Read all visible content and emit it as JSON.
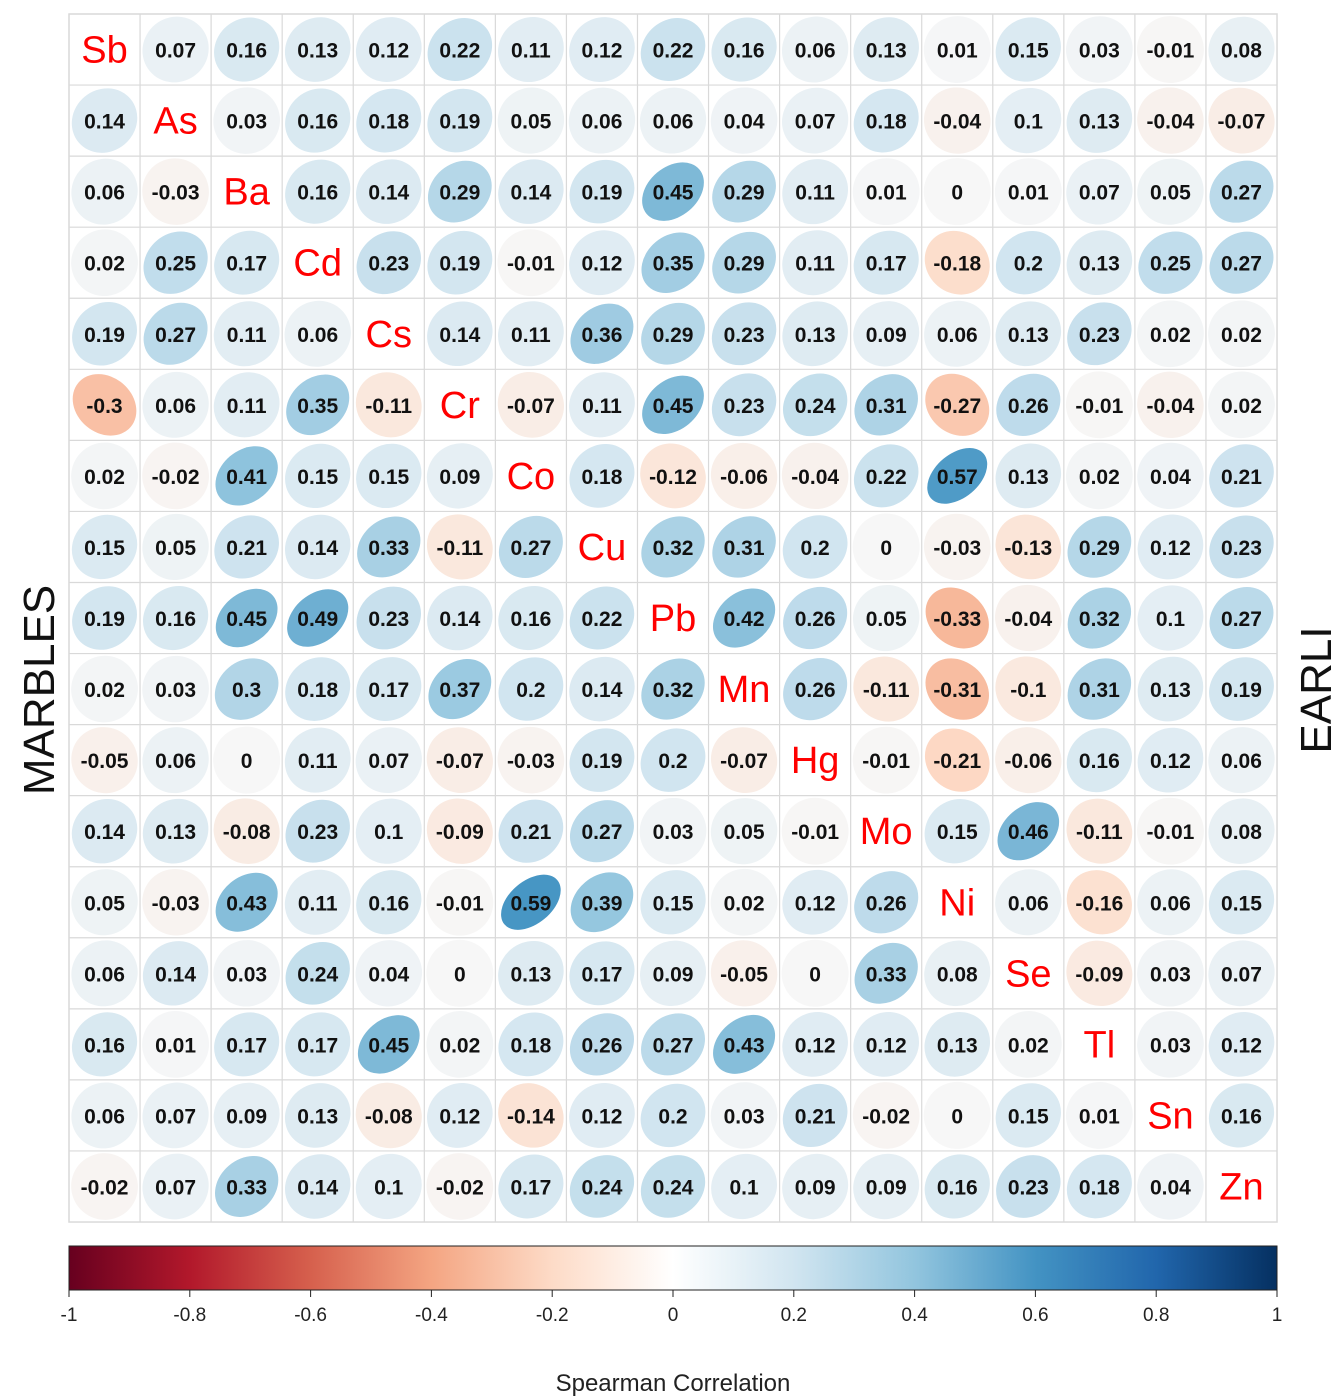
{
  "chart_data": {
    "type": "heatmap",
    "variables": [
      "Sb",
      "As",
      "Ba",
      "Cd",
      "Cs",
      "Cr",
      "Co",
      "Cu",
      "Pb",
      "Mn",
      "Hg",
      "Mo",
      "Ni",
      "Se",
      "Tl",
      "Sn",
      "Zn"
    ],
    "left_label": "MARBLES",
    "right_label": "EARLI",
    "matrix": [
      [
        null,
        0.07,
        0.16,
        0.13,
        0.12,
        0.22,
        0.11,
        0.12,
        0.22,
        0.16,
        0.06,
        0.13,
        0.01,
        0.15,
        0.03,
        -0.01,
        0.08
      ],
      [
        0.14,
        null,
        0.03,
        0.16,
        0.18,
        0.19,
        0.05,
        0.06,
        0.06,
        0.04,
        0.07,
        0.18,
        -0.04,
        0.1,
        0.13,
        -0.04,
        -0.07
      ],
      [
        0.06,
        -0.03,
        null,
        0.16,
        0.14,
        0.29,
        0.14,
        0.19,
        0.45,
        0.29,
        0.11,
        0.01,
        0,
        0.01,
        0.07,
        0.05,
        0.27
      ],
      [
        0.02,
        0.25,
        0.17,
        null,
        0.23,
        0.19,
        -0.01,
        0.12,
        0.35,
        0.29,
        0.11,
        0.17,
        -0.18,
        0.2,
        0.13,
        0.25,
        0.27
      ],
      [
        0.19,
        0.27,
        0.11,
        0.06,
        null,
        0.14,
        0.11,
        0.36,
        0.29,
        0.23,
        0.13,
        0.09,
        0.06,
        0.13,
        0.23,
        0.02,
        0.02
      ],
      [
        -0.3,
        0.06,
        0.11,
        0.35,
        -0.11,
        null,
        -0.07,
        0.11,
        0.45,
        0.23,
        0.24,
        0.31,
        -0.27,
        0.26,
        -0.01,
        -0.04,
        0.02
      ],
      [
        0.02,
        -0.02,
        0.41,
        0.15,
        0.15,
        0.09,
        null,
        0.18,
        -0.12,
        -0.06,
        -0.04,
        0.22,
        0.57,
        0.13,
        0.02,
        0.04,
        0.21
      ],
      [
        0.15,
        0.05,
        0.21,
        0.14,
        0.33,
        -0.11,
        0.27,
        null,
        0.32,
        0.31,
        0.2,
        0,
        -0.03,
        -0.13,
        0.29,
        0.12,
        0.23
      ],
      [
        0.19,
        0.16,
        0.45,
        0.49,
        0.23,
        0.14,
        0.16,
        0.22,
        null,
        0.42,
        0.26,
        0.05,
        -0.33,
        -0.04,
        0.32,
        0.1,
        0.27
      ],
      [
        0.02,
        0.03,
        0.3,
        0.18,
        0.17,
        0.37,
        0.2,
        0.14,
        0.32,
        null,
        0.26,
        -0.11,
        -0.31,
        -0.1,
        0.31,
        0.13,
        0.19
      ],
      [
        -0.05,
        0.06,
        0,
        0.11,
        0.07,
        -0.07,
        -0.03,
        0.19,
        0.2,
        -0.07,
        null,
        -0.01,
        -0.21,
        -0.06,
        0.16,
        0.12,
        0.06
      ],
      [
        0.14,
        0.13,
        -0.08,
        0.23,
        0.1,
        -0.09,
        0.21,
        0.27,
        0.03,
        0.05,
        -0.01,
        null,
        0.15,
        0.46,
        -0.11,
        -0.01,
        0.08
      ],
      [
        0.05,
        -0.03,
        0.43,
        0.11,
        0.16,
        -0.01,
        0.59,
        0.39,
        0.15,
        0.02,
        0.12,
        0.26,
        null,
        0.06,
        -0.16,
        0.06,
        0.15
      ],
      [
        0.06,
        0.14,
        0.03,
        0.24,
        0.04,
        0,
        0.13,
        0.17,
        0.09,
        -0.05,
        0,
        0.33,
        0.08,
        null,
        -0.09,
        0.03,
        0.07
      ],
      [
        0.16,
        0.01,
        0.17,
        0.17,
        0.45,
        0.02,
        0.18,
        0.26,
        0.27,
        0.43,
        0.12,
        0.12,
        0.13,
        0.02,
        null,
        0.03,
        0.12
      ],
      [
        0.06,
        0.07,
        0.09,
        0.13,
        -0.08,
        0.12,
        -0.14,
        0.12,
        0.2,
        0.03,
        0.21,
        -0.02,
        0,
        0.15,
        0.01,
        null,
        0.16
      ],
      [
        -0.02,
        0.07,
        0.33,
        0.14,
        0.1,
        -0.02,
        0.17,
        0.24,
        0.24,
        0.1,
        0.09,
        0.09,
        0.16,
        0.23,
        0.18,
        0.04,
        null
      ]
    ],
    "colorbar": {
      "title": "Spearman Correlation",
      "range": [
        -1,
        1
      ],
      "ticks": [
        -1,
        -0.8,
        -0.6,
        -0.4,
        -0.2,
        0,
        0.2,
        0.4,
        0.6,
        0.8,
        1
      ],
      "tick_labels": [
        "-1",
        "-0.8",
        "-0.6",
        "-0.4",
        "-0.2",
        "0",
        "0.2",
        "0.4",
        "0.6",
        "0.8",
        "1"
      ]
    },
    "colors": {
      "neg_end": "#67001f",
      "neg_mid": "#d6604d",
      "neg_light": "#fddbc7",
      "zero": "#f7f7f7",
      "pos_light": "#d1e5f0",
      "pos_mid": "#4393c3",
      "pos_end": "#053061",
      "diag_text": "#ff0000",
      "grid": "#d9d9d9"
    }
  }
}
